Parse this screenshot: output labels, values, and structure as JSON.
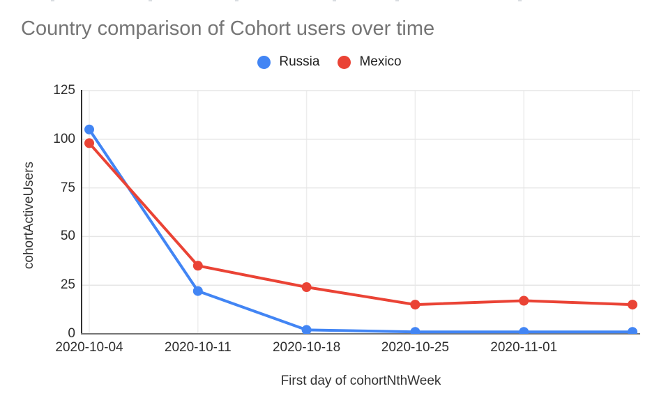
{
  "header": {
    "title": "Country comparison of Cohort users over time",
    "title_color": "#757575"
  },
  "legend": {
    "items": [
      {
        "label": "Russia",
        "color": "#4285F4"
      },
      {
        "label": "Mexico",
        "color": "#EA4335"
      }
    ]
  },
  "chart_data": {
    "type": "line",
    "title": "Country comparison of Cohort users over time",
    "xlabel": "First day of cohortNthWeek",
    "ylabel": "cohortActiveUsers",
    "categories": [
      "2020-10-04",
      "2020-10-11",
      "2020-10-18",
      "2020-10-25",
      "2020-11-01",
      ""
    ],
    "x_tick_labels": [
      "2020-10-04",
      "2020-10-11",
      "2020-10-18",
      "2020-10-25",
      "2020-11-01"
    ],
    "series": [
      {
        "name": "Russia",
        "color": "#4285F4",
        "values": [
          105,
          22,
          2,
          1,
          1,
          1
        ]
      },
      {
        "name": "Mexico",
        "color": "#EA4335",
        "values": [
          98,
          35,
          24,
          15,
          17,
          15
        ]
      }
    ],
    "ylim": [
      0,
      125
    ],
    "yticks": [
      0,
      25,
      50,
      75,
      100,
      125
    ],
    "grid": true,
    "legend_position": "top",
    "axis_colors": {
      "y_axis_line": "#333333",
      "x_axis_line": "#757575",
      "gridline": "#e6e6e6"
    }
  }
}
